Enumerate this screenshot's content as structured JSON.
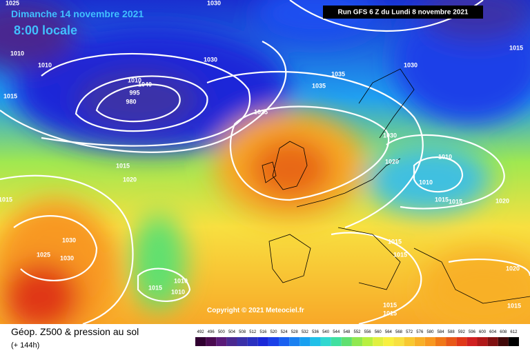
{
  "header": {
    "date": "Dimanche 14 novembre 2021",
    "time": "8:00 locale",
    "run": "Run GFS 6 Z du Lundi 8 novembre 2021"
  },
  "isobar_labels": [
    1025,
    1030,
    1010,
    1010,
    1015,
    1030,
    1040,
    1010,
    995,
    980,
    1035,
    1035,
    1025,
    1030,
    1015,
    1030,
    1020,
    1010,
    1010,
    1015,
    1015,
    1020,
    1015,
    1020,
    1030,
    1025,
    1030,
    1015,
    1010,
    1010,
    1015,
    1015,
    1015,
    1015,
    1020,
    1015,
    1015
  ],
  "copyright": "Copyright © 2021 Meteociel.fr",
  "footer": {
    "title": "Géop. Z500 & pression au sol",
    "lead": "(+ 144h)"
  },
  "legend": {
    "labels": [
      492,
      496,
      500,
      504,
      508,
      512,
      516,
      520,
      524,
      528,
      532,
      536,
      540,
      544,
      548,
      552,
      556,
      560,
      564,
      568,
      572,
      576,
      580,
      584,
      588,
      592,
      596,
      600,
      604,
      608,
      612
    ],
    "colors": [
      "#300030",
      "#4a0a50",
      "#5a1a78",
      "#4a2890",
      "#3a30a8",
      "#2a30c0",
      "#1a28d8",
      "#1a40e8",
      "#1a60f0",
      "#1a80f0",
      "#18a0f0",
      "#20c0e8",
      "#30d8d0",
      "#40e0a0",
      "#60e070",
      "#90e850",
      "#b8f040",
      "#e0f040",
      "#f8f040",
      "#f8e040",
      "#f8c830",
      "#f8b028",
      "#f89820",
      "#f07818",
      "#e85818",
      "#e03818",
      "#d02020",
      "#b01818",
      "#801010",
      "#400808",
      "#000000"
    ]
  }
}
